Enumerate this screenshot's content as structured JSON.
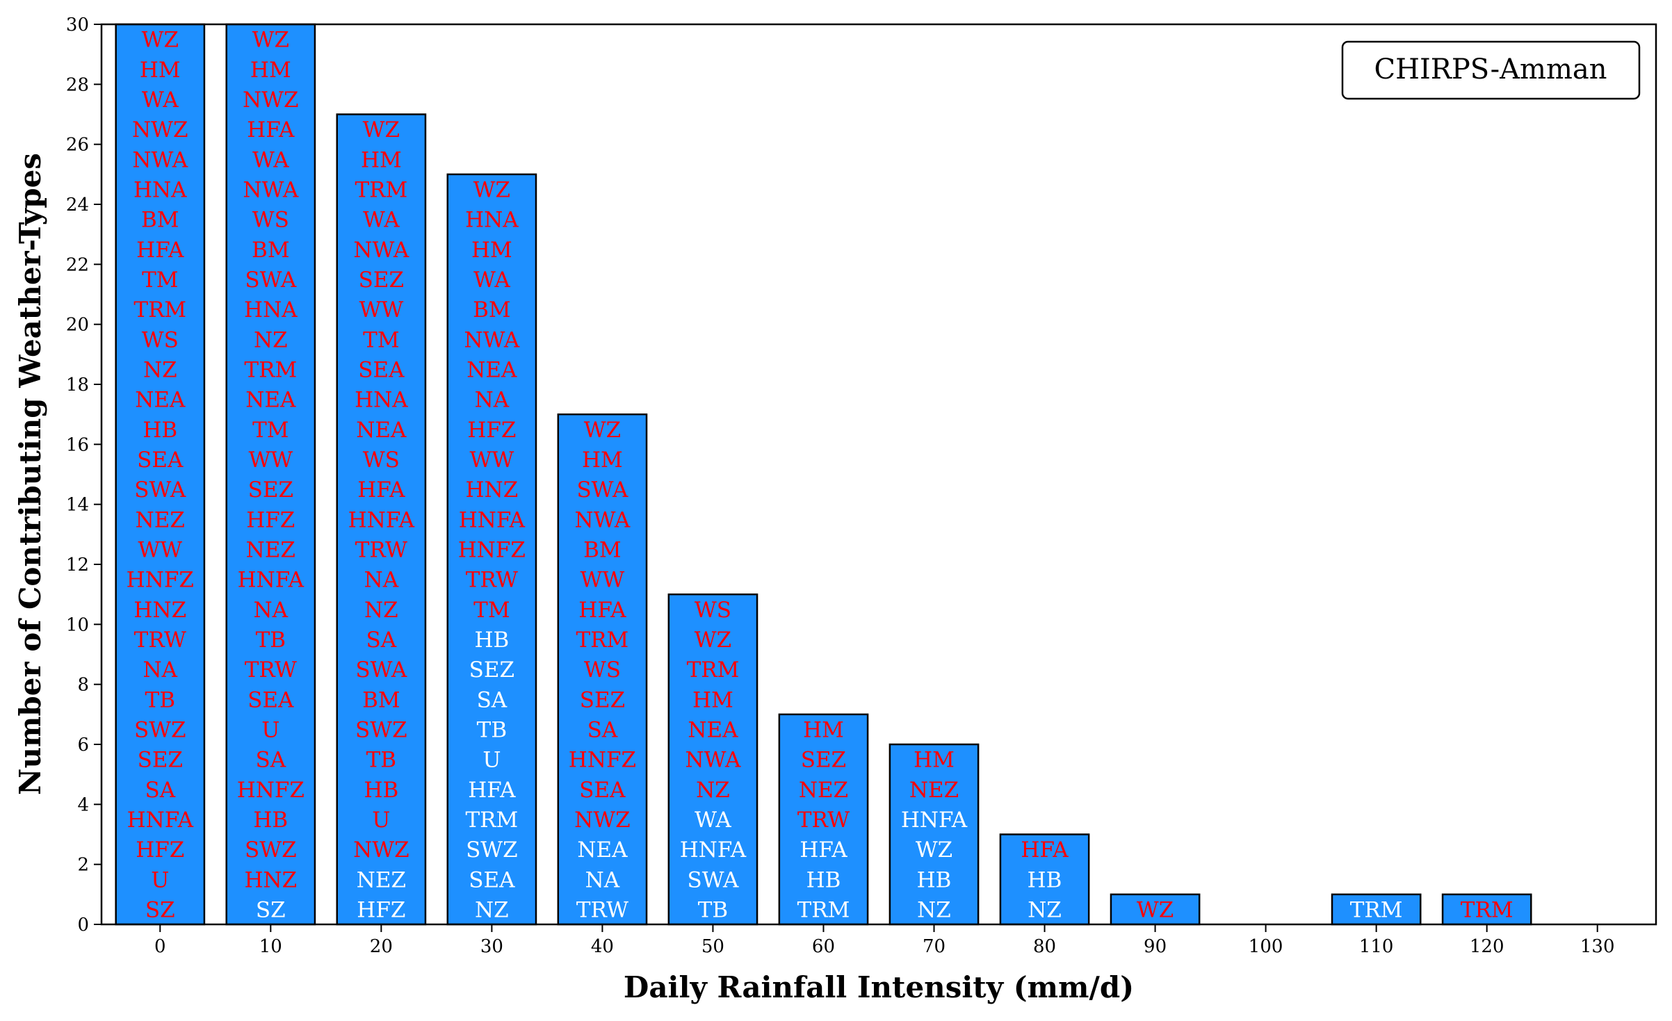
{
  "chart_data": {
    "type": "bar",
    "xlabel": "Daily Rainfall Intensity (mm/d)",
    "ylabel": "Number of Contributing Weather-Types",
    "legend": "CHIRPS-Amman",
    "legend_position": "top-right",
    "xlim": [
      -5.3,
      135.3
    ],
    "ylim": [
      0,
      30
    ],
    "bar_width": 8,
    "xticks": [
      0,
      10,
      20,
      30,
      40,
      50,
      60,
      70,
      80,
      90,
      100,
      110,
      120,
      130
    ],
    "yticks": [
      0,
      2,
      4,
      6,
      8,
      10,
      12,
      14,
      16,
      18,
      20,
      22,
      24,
      26,
      28,
      30
    ],
    "colors": {
      "bar": "#1e90ff",
      "edge": "#000000",
      "label_red": "#ff0000",
      "label_white": "#ffffff"
    },
    "bars": [
      {
        "x": 0,
        "value": 30,
        "white_from_bottom": 0,
        "labels": [
          "WZ",
          "HM",
          "WA",
          "NWZ",
          "NWA",
          "HNA",
          "BM",
          "HFA",
          "TM",
          "TRM",
          "WS",
          "NZ",
          "NEA",
          "HB",
          "SEA",
          "SWA",
          "NEZ",
          "WW",
          "HNFZ",
          "HNZ",
          "TRW",
          "NA",
          "TB",
          "SWZ",
          "SEZ",
          "SA",
          "HNFA",
          "HFZ",
          "U",
          "SZ"
        ]
      },
      {
        "x": 10,
        "value": 30,
        "white_from_bottom": 1,
        "labels": [
          "WZ",
          "HM",
          "NWZ",
          "HFA",
          "WA",
          "NWA",
          "WS",
          "BM",
          "SWA",
          "HNA",
          "NZ",
          "TRM",
          "NEA",
          "TM",
          "WW",
          "SEZ",
          "HFZ",
          "NEZ",
          "HNFA",
          "NA",
          "TB",
          "TRW",
          "SEA",
          "U",
          "SA",
          "HNFZ",
          "HB",
          "SWZ",
          "HNZ",
          "SZ"
        ]
      },
      {
        "x": 20,
        "value": 27,
        "white_from_bottom": 2,
        "labels": [
          "WZ",
          "HM",
          "TRM",
          "WA",
          "NWA",
          "SEZ",
          "WW",
          "TM",
          "SEA",
          "HNA",
          "NEA",
          "WS",
          "HFA",
          "HNFA",
          "TRW",
          "NA",
          "NZ",
          "SA",
          "SWA",
          "BM",
          "SWZ",
          "TB",
          "HB",
          "U",
          "NWZ",
          "NEZ",
          "HFZ"
        ]
      },
      {
        "x": 30,
        "value": 25,
        "white_from_bottom": 10,
        "labels": [
          "WZ",
          "HNA",
          "HM",
          "WA",
          "BM",
          "NWA",
          "NEA",
          "NA",
          "HFZ",
          "WW",
          "HNZ",
          "HNFA",
          "HNFZ",
          "TRW",
          "TM",
          "HB",
          "SEZ",
          "SA",
          "TB",
          "U",
          "HFA",
          "TRM",
          "SWZ",
          "SEA",
          "NZ"
        ]
      },
      {
        "x": 40,
        "value": 17,
        "white_from_bottom": 3,
        "labels": [
          "WZ",
          "HM",
          "SWA",
          "NWA",
          "BM",
          "WW",
          "HFA",
          "TRM",
          "WS",
          "SEZ",
          "SA",
          "HNFZ",
          "SEA",
          "NWZ",
          "NEA",
          "NA",
          "TRW"
        ]
      },
      {
        "x": 50,
        "value": 11,
        "white_from_bottom": 4,
        "labels": [
          "WS",
          "WZ",
          "TRM",
          "HM",
          "NEA",
          "NWA",
          "NZ",
          "WA",
          "HNFA",
          "SWA",
          "TB"
        ]
      },
      {
        "x": 60,
        "value": 7,
        "white_from_bottom": 3,
        "labels": [
          "HM",
          "SEZ",
          "NEZ",
          "TRW",
          "HFA",
          "HB",
          "TRM"
        ]
      },
      {
        "x": 70,
        "value": 6,
        "white_from_bottom": 4,
        "labels": [
          "HM",
          "NEZ",
          "HNFA",
          "WZ",
          "HB",
          "NZ"
        ]
      },
      {
        "x": 80,
        "value": 3,
        "white_from_bottom": 2,
        "labels": [
          "HFA",
          "HB",
          "NZ"
        ]
      },
      {
        "x": 90,
        "value": 1,
        "white_from_bottom": 0,
        "labels": [
          "WZ"
        ]
      },
      {
        "x": 110,
        "value": 1,
        "white_from_bottom": 1,
        "labels": [
          "TRM"
        ]
      },
      {
        "x": 120,
        "value": 1,
        "white_from_bottom": 0,
        "labels": [
          "TRM"
        ]
      }
    ]
  }
}
